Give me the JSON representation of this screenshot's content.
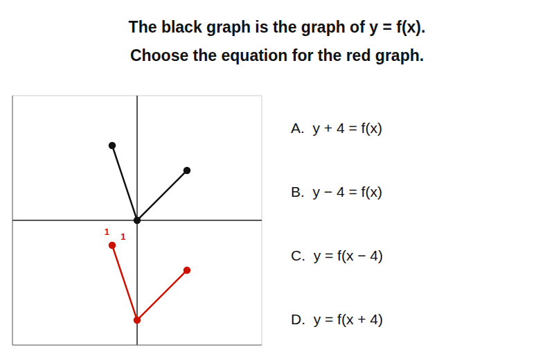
{
  "chart_data": {
    "type": "line",
    "title": "The black graph is the graph of y = f(x).",
    "subtitle": "Choose the equation for the red graph.",
    "x": [
      -1,
      0,
      2
    ],
    "series": [
      {
        "color": "#111111",
        "values": [
          3,
          0,
          2
        ],
        "marker": "o"
      },
      {
        "color": "#cc1100",
        "values": [
          -1,
          -4,
          -2
        ],
        "marker": "o"
      }
    ],
    "xlim": [
      -5,
      5
    ],
    "ylim": [
      -5,
      5
    ],
    "xticks": [
      -5,
      -4,
      -3,
      -2,
      -1,
      0,
      1,
      2,
      3,
      4,
      5
    ],
    "yticks": [
      -5,
      -4,
      -3,
      -2,
      -1,
      0,
      1,
      2,
      3,
      4,
      5
    ],
    "grid": true,
    "legend": false,
    "tick_labels": false,
    "annotations": [
      {
        "text": "1",
        "x": -1.45,
        "y": -0.45,
        "color": "#cc1100"
      },
      {
        "text": "1",
        "x": -0.8,
        "y": -0.65,
        "color": "#cc1100"
      }
    ],
    "choices": [
      "A.  y + 4 = f(x)",
      "B.  y − 4 = f(x)",
      "C.  y = f(x − 4)",
      "D.  y = f(x + 4)"
    ]
  }
}
